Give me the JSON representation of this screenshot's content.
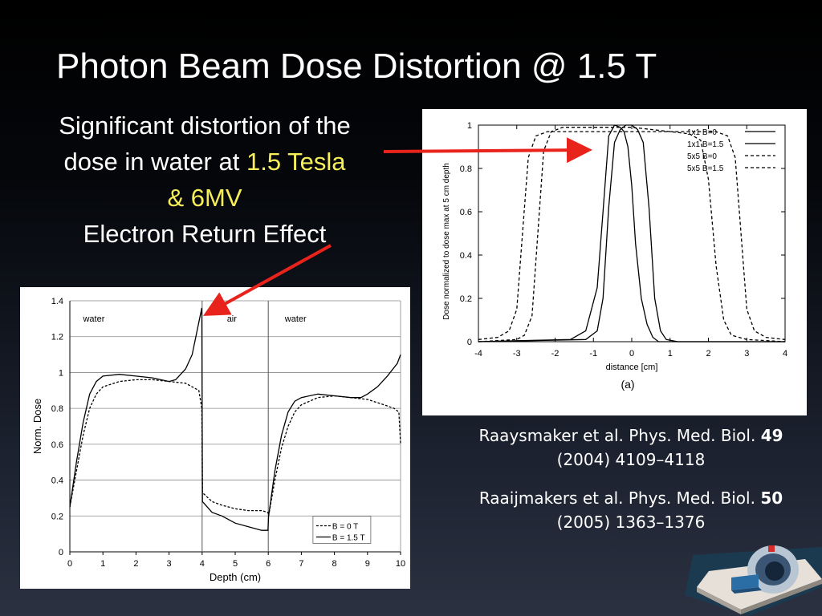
{
  "slide": {
    "title": "Photon Beam Dose Distortion @ 1.5 T",
    "desc_line1": "Significant distortion of the",
    "desc_line2_pre": "dose in water at ",
    "desc_line2_hl": "1.5 Tesla",
    "desc_line3": "& 6MV",
    "desc_line4": "Electron Return Effect",
    "highlight_color": "#f6ef5a",
    "arrow_color": "#e8231c"
  },
  "references": [
    {
      "authors": "Raaysmaker et al. Phys. Med. Biol.",
      "volume": "49",
      "details": "(2004) 4109–4118"
    },
    {
      "authors": "Raaijmakers et al. Phys. Med. Biol.",
      "volume": "50",
      "details": "(2005) 1363–1376"
    }
  ],
  "chart_data": [
    {
      "type": "line",
      "xlabel": "distance [cm]",
      "ylabel": "Dose normalized to dose max at 5 cm depth",
      "xlim": [
        -4,
        4
      ],
      "ylim": [
        0,
        1
      ],
      "xticks": [
        -4,
        -3,
        -2,
        -1,
        0,
        1,
        2,
        3,
        4
      ],
      "yticks": [
        0,
        0.2,
        0.4,
        0.6,
        0.8,
        1
      ],
      "caption": "(a)",
      "legend_position": "top-right",
      "series": [
        {
          "name": "1x1 B=0",
          "style": "solid",
          "x": [
            -4,
            -1.2,
            -0.9,
            -0.75,
            -0.6,
            -0.45,
            -0.3,
            -0.15,
            0,
            0.15,
            0.3,
            0.45,
            0.6,
            0.75,
            0.9,
            1.2,
            4
          ],
          "y": [
            0.0,
            0.01,
            0.05,
            0.2,
            0.62,
            0.92,
            0.98,
            1.0,
            1.0,
            0.98,
            0.92,
            0.62,
            0.2,
            0.05,
            0.01,
            0.0,
            0.0
          ]
        },
        {
          "name": "1x1 B=1.5",
          "style": "solid",
          "x": [
            -4,
            -1.6,
            -1.2,
            -0.9,
            -0.75,
            -0.6,
            -0.45,
            -0.3,
            -0.2,
            -0.1,
            0,
            0.1,
            0.25,
            0.4,
            0.55,
            0.7,
            0.8,
            0.9,
            1.1,
            4
          ],
          "y": [
            0.0,
            0.01,
            0.05,
            0.25,
            0.6,
            0.95,
            1.0,
            0.99,
            0.97,
            0.9,
            0.72,
            0.45,
            0.2,
            0.08,
            0.02,
            0.0,
            0.0,
            0.0,
            0.0,
            0.0
          ]
        },
        {
          "name": "5x5 B=0",
          "style": "dashed",
          "x": [
            -4,
            -3.5,
            -3.2,
            -3.0,
            -2.85,
            -2.7,
            -2.5,
            -2.2,
            0,
            2.2,
            2.5,
            2.7,
            2.85,
            3.0,
            3.2,
            3.5,
            4
          ],
          "y": [
            0.01,
            0.02,
            0.05,
            0.15,
            0.5,
            0.85,
            0.95,
            0.97,
            0.97,
            0.97,
            0.95,
            0.85,
            0.5,
            0.15,
            0.05,
            0.02,
            0.01
          ]
        },
        {
          "name": "5x5 B=1.5",
          "style": "dashed",
          "x": [
            -4,
            -3.0,
            -2.8,
            -2.6,
            -2.45,
            -2.3,
            -2.1,
            -1.8,
            0,
            0.5,
            1.0,
            1.5,
            1.8,
            2.0,
            2.2,
            2.4,
            2.6,
            3.0,
            4
          ],
          "y": [
            0.0,
            0.01,
            0.03,
            0.12,
            0.5,
            0.88,
            0.97,
            0.99,
            0.99,
            0.98,
            0.97,
            0.96,
            0.93,
            0.75,
            0.35,
            0.1,
            0.03,
            0.01,
            0.0
          ]
        }
      ]
    },
    {
      "type": "line",
      "xlabel": "Depth (cm)",
      "ylabel": "Norm. Dose",
      "xlim": [
        0,
        10
      ],
      "ylim": [
        0,
        1.4
      ],
      "xticks": [
        0,
        1,
        2,
        3,
        4,
        5,
        6,
        7,
        8,
        9,
        10
      ],
      "yticks": [
        0,
        0.2,
        0.4,
        0.6,
        0.8,
        1,
        1.2,
        1.4
      ],
      "grid": true,
      "legend_position": "bottom-right",
      "region_labels": [
        {
          "text": "water",
          "x": 0.4
        },
        {
          "text": "air",
          "x": 4.75
        },
        {
          "text": "water",
          "x": 6.5
        }
      ],
      "boundaries": [
        4,
        6
      ],
      "series": [
        {
          "name": "B = 0 T",
          "style": "dashed",
          "x": [
            0,
            0.2,
            0.4,
            0.6,
            0.8,
            1.0,
            1.5,
            2.0,
            2.5,
            3.0,
            3.5,
            3.9,
            3.99,
            4.01,
            4.3,
            4.6,
            5.0,
            5.4,
            5.8,
            5.99,
            6.01,
            6.2,
            6.4,
            6.6,
            6.8,
            7.0,
            7.5,
            8.0,
            8.5,
            9.0,
            9.5,
            9.8,
            9.95,
            10
          ],
          "y": [
            0.25,
            0.45,
            0.65,
            0.8,
            0.88,
            0.92,
            0.95,
            0.96,
            0.96,
            0.95,
            0.94,
            0.9,
            0.8,
            0.33,
            0.28,
            0.26,
            0.24,
            0.23,
            0.23,
            0.22,
            0.2,
            0.4,
            0.58,
            0.7,
            0.78,
            0.82,
            0.86,
            0.87,
            0.86,
            0.85,
            0.82,
            0.8,
            0.78,
            0.6
          ]
        },
        {
          "name": "B = 1.5 T",
          "style": "solid",
          "x": [
            0,
            0.2,
            0.4,
            0.6,
            0.8,
            1.0,
            1.5,
            2.0,
            2.5,
            3.0,
            3.2,
            3.5,
            3.7,
            3.9,
            3.99,
            4.01,
            4.3,
            4.6,
            5.0,
            5.4,
            5.8,
            5.99,
            6.01,
            6.2,
            6.4,
            6.6,
            6.8,
            7.0,
            7.5,
            8.0,
            8.5,
            8.8,
            9.0,
            9.3,
            9.6,
            9.9,
            10
          ],
          "y": [
            0.25,
            0.5,
            0.72,
            0.88,
            0.95,
            0.98,
            0.99,
            0.98,
            0.97,
            0.95,
            0.96,
            1.02,
            1.1,
            1.28,
            1.36,
            0.28,
            0.22,
            0.2,
            0.16,
            0.14,
            0.12,
            0.12,
            0.2,
            0.45,
            0.65,
            0.78,
            0.84,
            0.86,
            0.88,
            0.87,
            0.86,
            0.86,
            0.88,
            0.92,
            0.98,
            1.05,
            1.1
          ]
        }
      ]
    }
  ]
}
